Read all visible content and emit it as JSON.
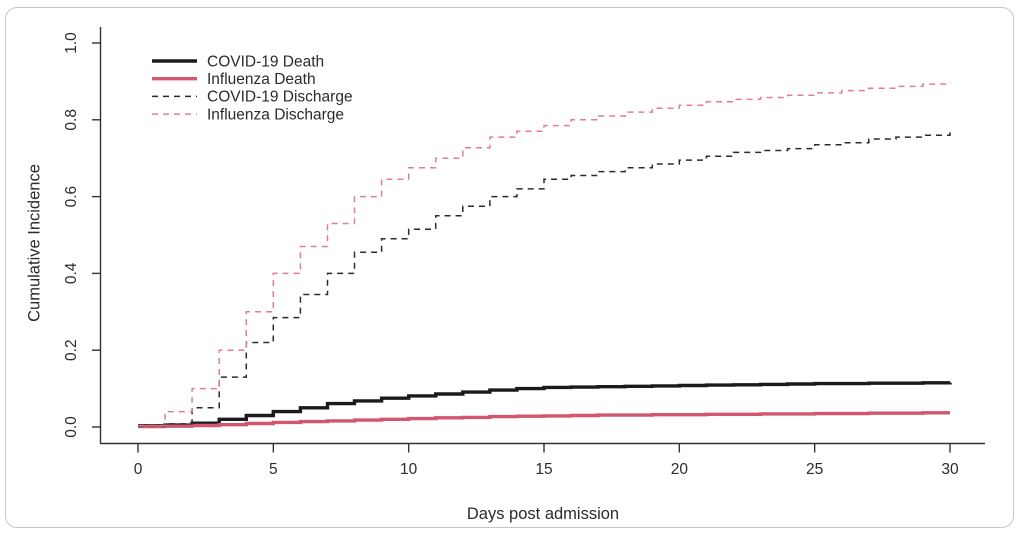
{
  "figure": {
    "background": "#ffffff",
    "border_color": "#c7c7c7",
    "axis_color": "#333333",
    "text_color": "#2b2b2b"
  },
  "chart_data": {
    "type": "line",
    "subtype": "step-function-cumulative-incidence",
    "title": "",
    "xlabel": "Days post admission",
    "ylabel": "Cumulative Incidence",
    "xlim": [
      0,
      30
    ],
    "ylim": [
      0.0,
      1.0
    ],
    "x_ticks": [
      0,
      5,
      10,
      15,
      20,
      25,
      30
    ],
    "y_ticks": [
      0.0,
      0.2,
      0.4,
      0.6,
      0.8,
      1.0
    ],
    "y_tick_labels": [
      "0.0",
      "0.2",
      "0.4",
      "0.6",
      "0.8",
      "1.0"
    ],
    "grid": false,
    "legend_position": "top-left",
    "x": [
      0,
      1,
      2,
      3,
      4,
      5,
      6,
      7,
      8,
      9,
      10,
      11,
      12,
      13,
      14,
      15,
      16,
      17,
      18,
      19,
      20,
      21,
      22,
      23,
      24,
      25,
      26,
      27,
      28,
      29,
      30
    ],
    "series": [
      {
        "name": "COVID-19 Death",
        "color": "#1b1b1b",
        "dash": "solid",
        "width": 3.4,
        "values": [
          0.003,
          0.005,
          0.01,
          0.02,
          0.03,
          0.04,
          0.05,
          0.061,
          0.068,
          0.075,
          0.081,
          0.086,
          0.091,
          0.096,
          0.1,
          0.103,
          0.104,
          0.105,
          0.106,
          0.107,
          0.108,
          0.109,
          0.11,
          0.111,
          0.112,
          0.113,
          0.113,
          0.114,
          0.114,
          0.115,
          0.116
        ]
      },
      {
        "name": "Influenza Death",
        "color": "#d2566e",
        "dash": "solid",
        "width": 3.4,
        "values": [
          0.001,
          0.002,
          0.004,
          0.006,
          0.009,
          0.012,
          0.014,
          0.016,
          0.018,
          0.02,
          0.022,
          0.024,
          0.025,
          0.027,
          0.028,
          0.029,
          0.03,
          0.031,
          0.031,
          0.032,
          0.032,
          0.033,
          0.033,
          0.034,
          0.034,
          0.035,
          0.035,
          0.036,
          0.036,
          0.037,
          0.037
        ]
      },
      {
        "name": "COVID-19 Discharge",
        "color": "#2a2a2a",
        "dash": "dashed",
        "width": 1.5,
        "values": [
          0.002,
          0.008,
          0.05,
          0.13,
          0.22,
          0.285,
          0.345,
          0.4,
          0.455,
          0.49,
          0.515,
          0.55,
          0.575,
          0.6,
          0.62,
          0.645,
          0.655,
          0.665,
          0.675,
          0.685,
          0.695,
          0.705,
          0.715,
          0.72,
          0.725,
          0.735,
          0.74,
          0.75,
          0.755,
          0.76,
          0.77
        ]
      },
      {
        "name": "Influenza Discharge",
        "color": "#df7e95",
        "dash": "dashed",
        "width": 1.5,
        "values": [
          0.003,
          0.04,
          0.1,
          0.2,
          0.3,
          0.4,
          0.47,
          0.53,
          0.6,
          0.645,
          0.675,
          0.7,
          0.727,
          0.755,
          0.77,
          0.785,
          0.8,
          0.81,
          0.82,
          0.83,
          0.838,
          0.847,
          0.853,
          0.858,
          0.864,
          0.87,
          0.876,
          0.882,
          0.887,
          0.893,
          0.898
        ]
      }
    ]
  }
}
